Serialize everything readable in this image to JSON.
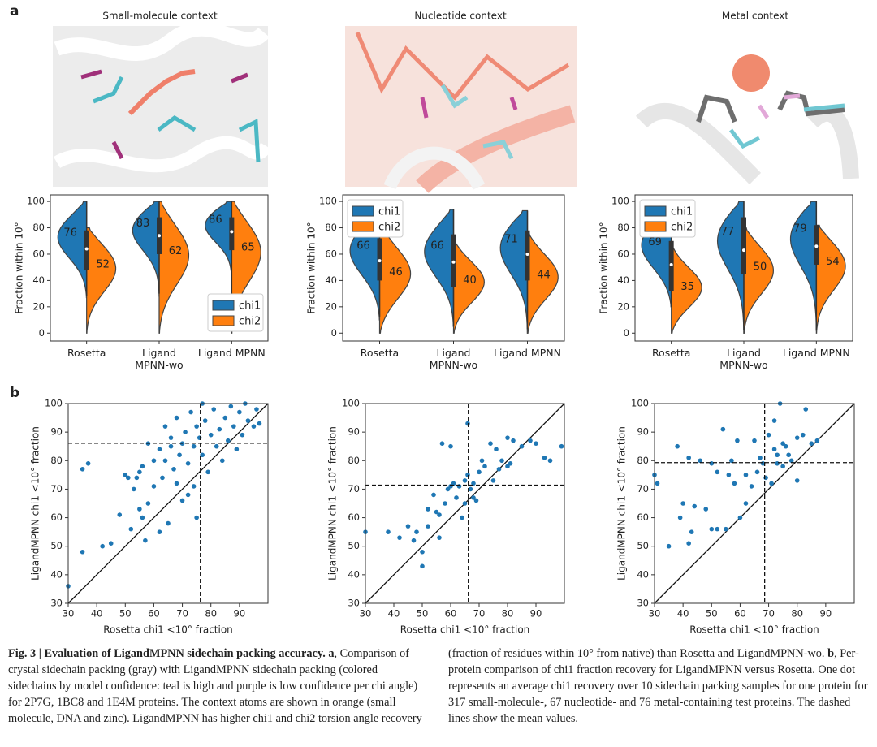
{
  "figure": {
    "panel_a_label": "a",
    "panel_b_label": "b",
    "contexts": [
      "Small-molecule context",
      "Nucleotide context",
      "Metal context"
    ]
  },
  "chart_data": [
    {
      "type": "violin",
      "ylabel": "Fraction within 10°",
      "categories": [
        "Rosetta",
        "Ligand MPNN-wo",
        "Ligand MPNN"
      ],
      "ylim": [
        -6,
        105
      ],
      "yticks": [
        0,
        20,
        40,
        60,
        80,
        100
      ],
      "legend": "lower right",
      "series": [
        {
          "name": "chi1",
          "color": "#1f77b4",
          "values": [
            76,
            83,
            86
          ],
          "min": [
            27,
            28,
            40
          ],
          "max": [
            100,
            100,
            100
          ]
        },
        {
          "name": "chi2",
          "color": "#ff7f0e",
          "values": [
            52,
            62,
            65
          ],
          "min": [
            0,
            0,
            0
          ],
          "max": [
            80,
            100,
            100
          ]
        }
      ],
      "box": {
        "q1": [
          48,
          60,
          63
        ],
        "q3": [
          78,
          88,
          88
        ],
        "median": [
          64,
          74,
          77
        ],
        "low": [
          28,
          30,
          30
        ],
        "high": [
          100,
          100,
          100
        ]
      }
    },
    {
      "type": "violin",
      "ylabel": "Fraction within 10°",
      "categories": [
        "Rosetta",
        "Ligand MPNN-wo",
        "Ligand MPNN"
      ],
      "ylim": [
        -6,
        105
      ],
      "yticks": [
        0,
        20,
        40,
        60,
        80,
        100
      ],
      "legend": "upper left",
      "series": [
        {
          "name": "chi1",
          "color": "#1f77b4",
          "values": [
            66,
            66,
            71
          ],
          "min": [
            10,
            5,
            0
          ],
          "max": [
            95,
            94,
            93
          ]
        },
        {
          "name": "chi2",
          "color": "#ff7f0e",
          "values": [
            46,
            40,
            44
          ],
          "min": [
            0,
            0,
            0
          ],
          "max": [
            85,
            70,
            76
          ]
        }
      ],
      "box": {
        "q1": [
          40,
          35,
          40
        ],
        "q3": [
          72,
          75,
          78
        ],
        "median": [
          55,
          54,
          60
        ],
        "low": [
          12,
          5,
          3
        ],
        "high": [
          95,
          94,
          93
        ]
      }
    },
    {
      "type": "violin",
      "ylabel": "Fraction within 10°",
      "categories": [
        "Rosetta",
        "Ligand MPNN-wo",
        "Ligand MPNN"
      ],
      "ylim": [
        -6,
        105
      ],
      "yticks": [
        0,
        20,
        40,
        60,
        80,
        100
      ],
      "legend": "upper left",
      "series": [
        {
          "name": "chi1",
          "color": "#1f77b4",
          "values": [
            69,
            77,
            79
          ],
          "min": [
            20,
            0,
            2
          ],
          "max": [
            100,
            100,
            100
          ]
        },
        {
          "name": "chi2",
          "color": "#ff7f0e",
          "values": [
            35,
            50,
            54
          ],
          "min": [
            0,
            0,
            0
          ],
          "max": [
            67,
            80,
            82
          ]
        }
      ],
      "box": {
        "q1": [
          32,
          45,
          52
        ],
        "q3": [
          70,
          88,
          82
        ],
        "median": [
          52,
          63,
          66
        ],
        "low": [
          20,
          2,
          2
        ],
        "high": [
          100,
          100,
          100
        ]
      }
    },
    {
      "type": "scatter",
      "xlabel": "Rosetta chi1 <10° fraction",
      "ylabel": "LigandMPNN chi1 <10° fraction",
      "color": "#1f77b4",
      "xlim": [
        30,
        100
      ],
      "ylim": [
        30,
        100
      ],
      "xticks": [
        30,
        40,
        50,
        60,
        70,
        80,
        90
      ],
      "yticks": [
        30,
        40,
        50,
        60,
        70,
        80,
        90,
        100
      ],
      "mean_x": 76.3,
      "mean_y": 86.1,
      "x": [
        30,
        35,
        35,
        37,
        42,
        45,
        48,
        50,
        51,
        52,
        53,
        55,
        55,
        56,
        57,
        58,
        60,
        60,
        62,
        62,
        63,
        64,
        65,
        66,
        67,
        68,
        69,
        70,
        70,
        71,
        72,
        73,
        74,
        74,
        75,
        76,
        77,
        77,
        78,
        79,
        80,
        81,
        82,
        83,
        84,
        85,
        86,
        87,
        88,
        89,
        90,
        91,
        92,
        93,
        95,
        96,
        97,
        75,
        72,
        68,
        66,
        64,
        58,
        56,
        54
      ],
      "y": [
        36,
        48,
        77,
        79,
        50,
        51,
        61,
        75,
        74,
        56,
        70,
        63,
        76,
        60,
        52,
        65,
        71,
        80,
        55,
        84,
        74,
        92,
        58,
        88,
        77,
        95,
        82,
        86,
        66,
        90,
        79,
        97,
        85,
        71,
        92,
        88,
        82,
        100,
        94,
        76,
        89,
        98,
        85,
        91,
        80,
        95,
        87,
        99,
        92,
        84,
        97,
        89,
        100,
        94,
        92,
        98,
        93,
        60,
        68,
        72,
        85,
        80,
        86,
        78,
        74
      ]
    },
    {
      "type": "scatter",
      "xlabel": "Rosetta chi1 <10° fraction",
      "ylabel": "LigandMPNN chi1 <10° fraction",
      "color": "#1f77b4",
      "xlim": [
        30,
        100
      ],
      "ylim": [
        30,
        100
      ],
      "xticks": [
        30,
        40,
        50,
        60,
        70,
        80,
        90
      ],
      "yticks": [
        30,
        40,
        50,
        60,
        70,
        80,
        90,
        100
      ],
      "mean_x": 66.2,
      "mean_y": 71.4,
      "x": [
        30,
        38,
        42,
        45,
        47,
        48,
        50,
        50,
        52,
        52,
        54,
        55,
        56,
        56,
        57,
        58,
        59,
        60,
        60,
        61,
        62,
        63,
        64,
        65,
        65,
        66,
        66,
        67,
        68,
        68,
        69,
        70,
        71,
        72,
        74,
        75,
        76,
        77,
        78,
        80,
        80,
        81,
        82,
        85,
        88,
        90,
        93,
        95,
        99
      ],
      "y": [
        55,
        55,
        53,
        57,
        52,
        55,
        48,
        43,
        57,
        63,
        68,
        62,
        61,
        53,
        86,
        65,
        70,
        71,
        85,
        72,
        67,
        71,
        60,
        65,
        73,
        93,
        75,
        70,
        72,
        67,
        66,
        76,
        80,
        78,
        86,
        73,
        84,
        77,
        80,
        78,
        88,
        79,
        87,
        85,
        87,
        86,
        81,
        80,
        85
      ]
    },
    {
      "type": "scatter",
      "xlabel": "Rosetta chi1 <10° fraction",
      "ylabel": "LigandMPNN chi1 <10° fraction",
      "color": "#1f77b4",
      "xlim": [
        30,
        100
      ],
      "ylim": [
        30,
        100
      ],
      "xticks": [
        30,
        40,
        50,
        60,
        70,
        80,
        90
      ],
      "yticks": [
        30,
        40,
        50,
        60,
        70,
        80,
        90,
        100
      ],
      "mean_x": 68.6,
      "mean_y": 79.3,
      "x": [
        30,
        31,
        35,
        38,
        39,
        40,
        42,
        42,
        43,
        44,
        46,
        48,
        50,
        50,
        52,
        52,
        54,
        55,
        56,
        57,
        58,
        59,
        60,
        62,
        62,
        64,
        65,
        66,
        67,
        68,
        69,
        70,
        71,
        72,
        73,
        73,
        74,
        75,
        75,
        76,
        77,
        78,
        80,
        80,
        82,
        83,
        85,
        87,
        72
      ],
      "y": [
        75,
        72,
        50,
        85,
        60,
        65,
        81,
        51,
        55,
        64,
        80,
        63,
        79,
        56,
        56,
        76,
        91,
        56,
        75,
        80,
        72,
        87,
        60,
        75,
        65,
        71,
        87,
        76,
        81,
        79,
        74,
        89,
        72,
        84,
        82,
        79,
        100,
        86,
        78,
        85,
        82,
        80,
        88,
        73,
        89,
        98,
        86,
        87,
        94
      ]
    }
  ],
  "caption": {
    "title": "Fig. 3 | Evaluation of LigandMPNN sidechain packing accuracy.",
    "parts": [
      " ",
      "a",
      ", Comparison of crystal sidechain packing (gray) with LigandMPNN sidechain packing (colored sidechains by model confidence: teal is high and purple is low confidence per chi angle) for 2P7G, 1BC8 and 1E4M proteins. The context atoms are shown in orange (small molecule, DNA and zinc). LigandMPNN has higher chi1 and chi2 torsion angle recovery (fraction of residues within 10° from native) than Rosetta and LigandMPNN-wo. ",
      "b",
      ", Per-protein comparison of chi1 fraction recovery for LigandMPNN versus Rosetta. One dot represents an average chi1 recovery over 10 sidechain packing samples for one protein for 317 small-molecule-, 67 nucleotide- and 76 metal-containing test proteins. The dashed lines show the mean values."
    ]
  }
}
